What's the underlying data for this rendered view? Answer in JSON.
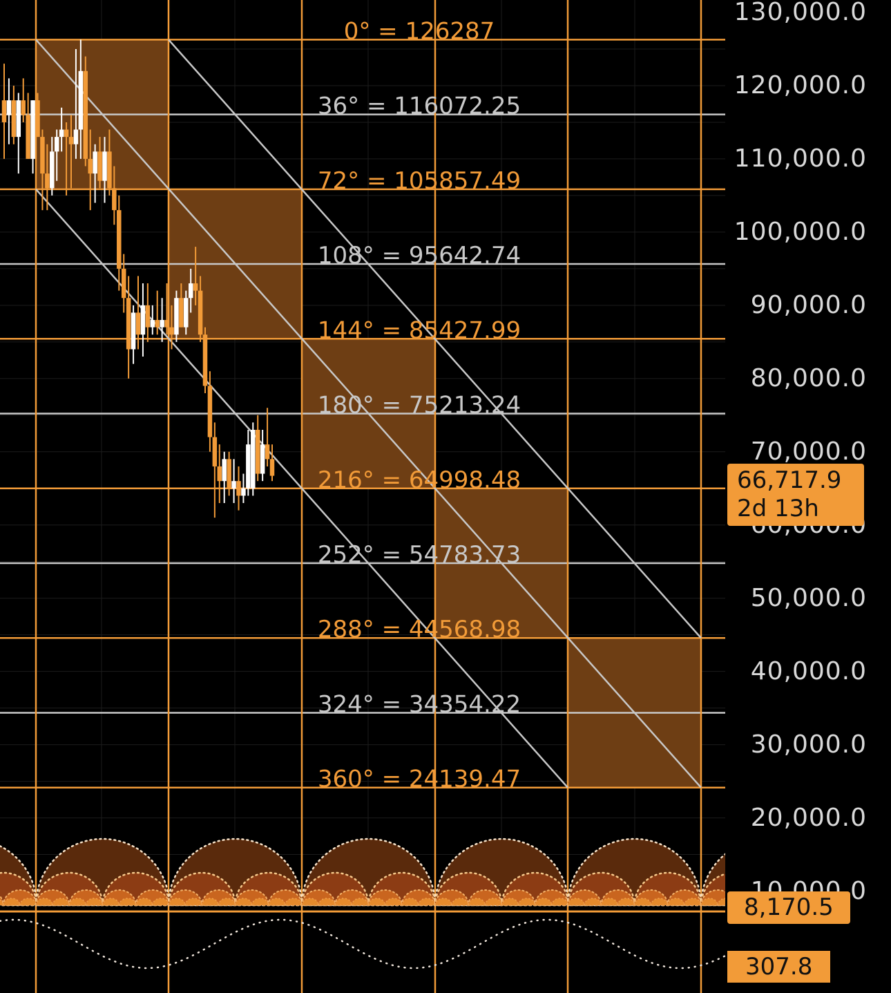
{
  "colors": {
    "background": "#000000",
    "accent_orange": "#f29b38",
    "box_fill": "#6e3e14",
    "grey_line": "#c8c8c8",
    "candle_up": "#ffffff",
    "candle_down": "#f29b38"
  },
  "chart_data": {
    "type": "candlestick",
    "title": "",
    "y_axis": {
      "min": 6000,
      "max": 132000,
      "ticks": [
        130000,
        120000,
        110000,
        100000,
        90000,
        80000,
        70000,
        60000,
        50000,
        40000,
        30000,
        20000,
        10000
      ],
      "tick_labels": [
        "130,000.0",
        "120,000.0",
        "110,000.0",
        "100,000.0",
        "90,000.0",
        "80,000.0",
        "70,000.0",
        "60,000.0",
        "50,000.0",
        "40,000.0",
        "30,000.0",
        "20,000.0",
        "10,000.0"
      ]
    },
    "gann_levels": [
      {
        "label": "0° = 126287",
        "value": 126287,
        "color": "orange"
      },
      {
        "label": "36° = 116072.25",
        "value": 116072.25,
        "color": "grey"
      },
      {
        "label": "72° = 105857.49",
        "value": 105857.49,
        "color": "orange"
      },
      {
        "label": "108° = 95642.74",
        "value": 95642.74,
        "color": "grey"
      },
      {
        "label": "144° = 85427.99",
        "value": 85427.99,
        "color": "orange"
      },
      {
        "label": "180° = 75213.24",
        "value": 75213.24,
        "color": "grey"
      },
      {
        "label": "216° = 64998.48",
        "value": 64998.48,
        "color": "orange"
      },
      {
        "label": "252° = 54783.73",
        "value": 54783.73,
        "color": "grey"
      },
      {
        "label": "288° = 44568.98",
        "value": 44568.98,
        "color": "orange"
      },
      {
        "label": "324° = 34354.22",
        "value": 34354.22,
        "color": "grey"
      },
      {
        "label": "360° = 24139.47",
        "value": 24139.47,
        "color": "orange"
      }
    ],
    "gann_boxes": [
      {
        "col": 0,
        "top": 126287,
        "bottom": 105857.49
      },
      {
        "col": 1,
        "top": 105857.49,
        "bottom": 85427.99
      },
      {
        "col": 2,
        "top": 85427.99,
        "bottom": 64998.48
      },
      {
        "col": 3,
        "top": 64998.48,
        "bottom": 44568.98
      },
      {
        "col": 4,
        "top": 44568.98,
        "bottom": 24139.47
      }
    ],
    "candles": [
      {
        "o": 118000,
        "h": 123000,
        "l": 110000,
        "c": 115000
      },
      {
        "o": 116000,
        "h": 121000,
        "l": 112000,
        "c": 118000
      },
      {
        "o": 118000,
        "h": 120000,
        "l": 112000,
        "c": 113000
      },
      {
        "o": 113000,
        "h": 119000,
        "l": 108000,
        "c": 118000
      },
      {
        "o": 118000,
        "h": 121000,
        "l": 115000,
        "c": 116000
      },
      {
        "o": 116000,
        "h": 119000,
        "l": 110000,
        "c": 110000
      },
      {
        "o": 110000,
        "h": 118000,
        "l": 108000,
        "c": 118000
      },
      {
        "o": 118000,
        "h": 119000,
        "l": 113000,
        "c": 113000
      },
      {
        "o": 113000,
        "h": 114000,
        "l": 103000,
        "c": 108000
      },
      {
        "o": 108000,
        "h": 112000,
        "l": 103000,
        "c": 106000
      },
      {
        "o": 106000,
        "h": 113000,
        "l": 105000,
        "c": 111000
      },
      {
        "o": 111000,
        "h": 114000,
        "l": 107000,
        "c": 113000
      },
      {
        "o": 113000,
        "h": 117000,
        "l": 111000,
        "c": 114000
      },
      {
        "o": 114000,
        "h": 115000,
        "l": 105000,
        "c": 113000
      },
      {
        "o": 113000,
        "h": 116000,
        "l": 106000,
        "c": 112000
      },
      {
        "o": 112000,
        "h": 125000,
        "l": 110000,
        "c": 114000
      },
      {
        "o": 114000,
        "h": 126287,
        "l": 110000,
        "c": 122000
      },
      {
        "o": 122000,
        "h": 124000,
        "l": 109000,
        "c": 110000
      },
      {
        "o": 110000,
        "h": 114000,
        "l": 103000,
        "c": 108000
      },
      {
        "o": 108000,
        "h": 112000,
        "l": 104000,
        "c": 111000
      },
      {
        "o": 111000,
        "h": 113000,
        "l": 106000,
        "c": 107000
      },
      {
        "o": 107000,
        "h": 113000,
        "l": 104000,
        "c": 111000
      },
      {
        "o": 111000,
        "h": 114000,
        "l": 105000,
        "c": 106000
      },
      {
        "o": 106000,
        "h": 109000,
        "l": 101000,
        "c": 103000
      },
      {
        "o": 103000,
        "h": 105000,
        "l": 92000,
        "c": 95000
      },
      {
        "o": 95000,
        "h": 97000,
        "l": 89000,
        "c": 91000
      },
      {
        "o": 91000,
        "h": 94000,
        "l": 80000,
        "c": 84000
      },
      {
        "o": 84000,
        "h": 90000,
        "l": 82000,
        "c": 89000
      },
      {
        "o": 89000,
        "h": 94000,
        "l": 84000,
        "c": 86000
      },
      {
        "o": 86000,
        "h": 93000,
        "l": 83000,
        "c": 90000
      },
      {
        "o": 90000,
        "h": 93000,
        "l": 85000,
        "c": 87000
      },
      {
        "o": 87000,
        "h": 90000,
        "l": 86000,
        "c": 88000
      },
      {
        "o": 88000,
        "h": 92000,
        "l": 86000,
        "c": 87000
      },
      {
        "o": 87000,
        "h": 91000,
        "l": 85000,
        "c": 88000
      },
      {
        "o": 88000,
        "h": 93000,
        "l": 86000,
        "c": 87000
      },
      {
        "o": 87000,
        "h": 90000,
        "l": 84000,
        "c": 86000
      },
      {
        "o": 86000,
        "h": 92000,
        "l": 85000,
        "c": 91000
      },
      {
        "o": 91000,
        "h": 93000,
        "l": 87000,
        "c": 87000
      },
      {
        "o": 87000,
        "h": 92000,
        "l": 86000,
        "c": 91000
      },
      {
        "o": 91000,
        "h": 95000,
        "l": 89000,
        "c": 93000
      },
      {
        "o": 93000,
        "h": 98000,
        "l": 90000,
        "c": 92000
      },
      {
        "o": 92000,
        "h": 94000,
        "l": 85000,
        "c": 86000
      },
      {
        "o": 86000,
        "h": 87000,
        "l": 78000,
        "c": 79000
      },
      {
        "o": 79000,
        "h": 81000,
        "l": 70000,
        "c": 72000
      },
      {
        "o": 72000,
        "h": 74000,
        "l": 61000,
        "c": 68000
      },
      {
        "o": 68000,
        "h": 71000,
        "l": 63000,
        "c": 66000
      },
      {
        "o": 66000,
        "h": 70000,
        "l": 63000,
        "c": 69000
      },
      {
        "o": 69000,
        "h": 70000,
        "l": 64000,
        "c": 65000
      },
      {
        "o": 65000,
        "h": 69000,
        "l": 63000,
        "c": 66000
      },
      {
        "o": 66000,
        "h": 68000,
        "l": 62000,
        "c": 64000
      },
      {
        "o": 64000,
        "h": 67000,
        "l": 63000,
        "c": 65000
      },
      {
        "o": 65000,
        "h": 73000,
        "l": 64000,
        "c": 71000
      },
      {
        "o": 65000,
        "h": 74000,
        "l": 64000,
        "c": 73000
      },
      {
        "o": 73000,
        "h": 75000,
        "l": 66000,
        "c": 67000
      },
      {
        "o": 67000,
        "h": 73000,
        "l": 66000,
        "c": 71000
      },
      {
        "o": 71000,
        "h": 76000,
        "l": 68000,
        "c": 69000
      },
      {
        "o": 69000,
        "h": 71000,
        "l": 66000,
        "c": 66718
      }
    ],
    "price_badge": {
      "value": "66,717.9",
      "countdown": "2d 13h"
    },
    "indicator_badges": [
      "8,170.5",
      "307.8"
    ]
  }
}
